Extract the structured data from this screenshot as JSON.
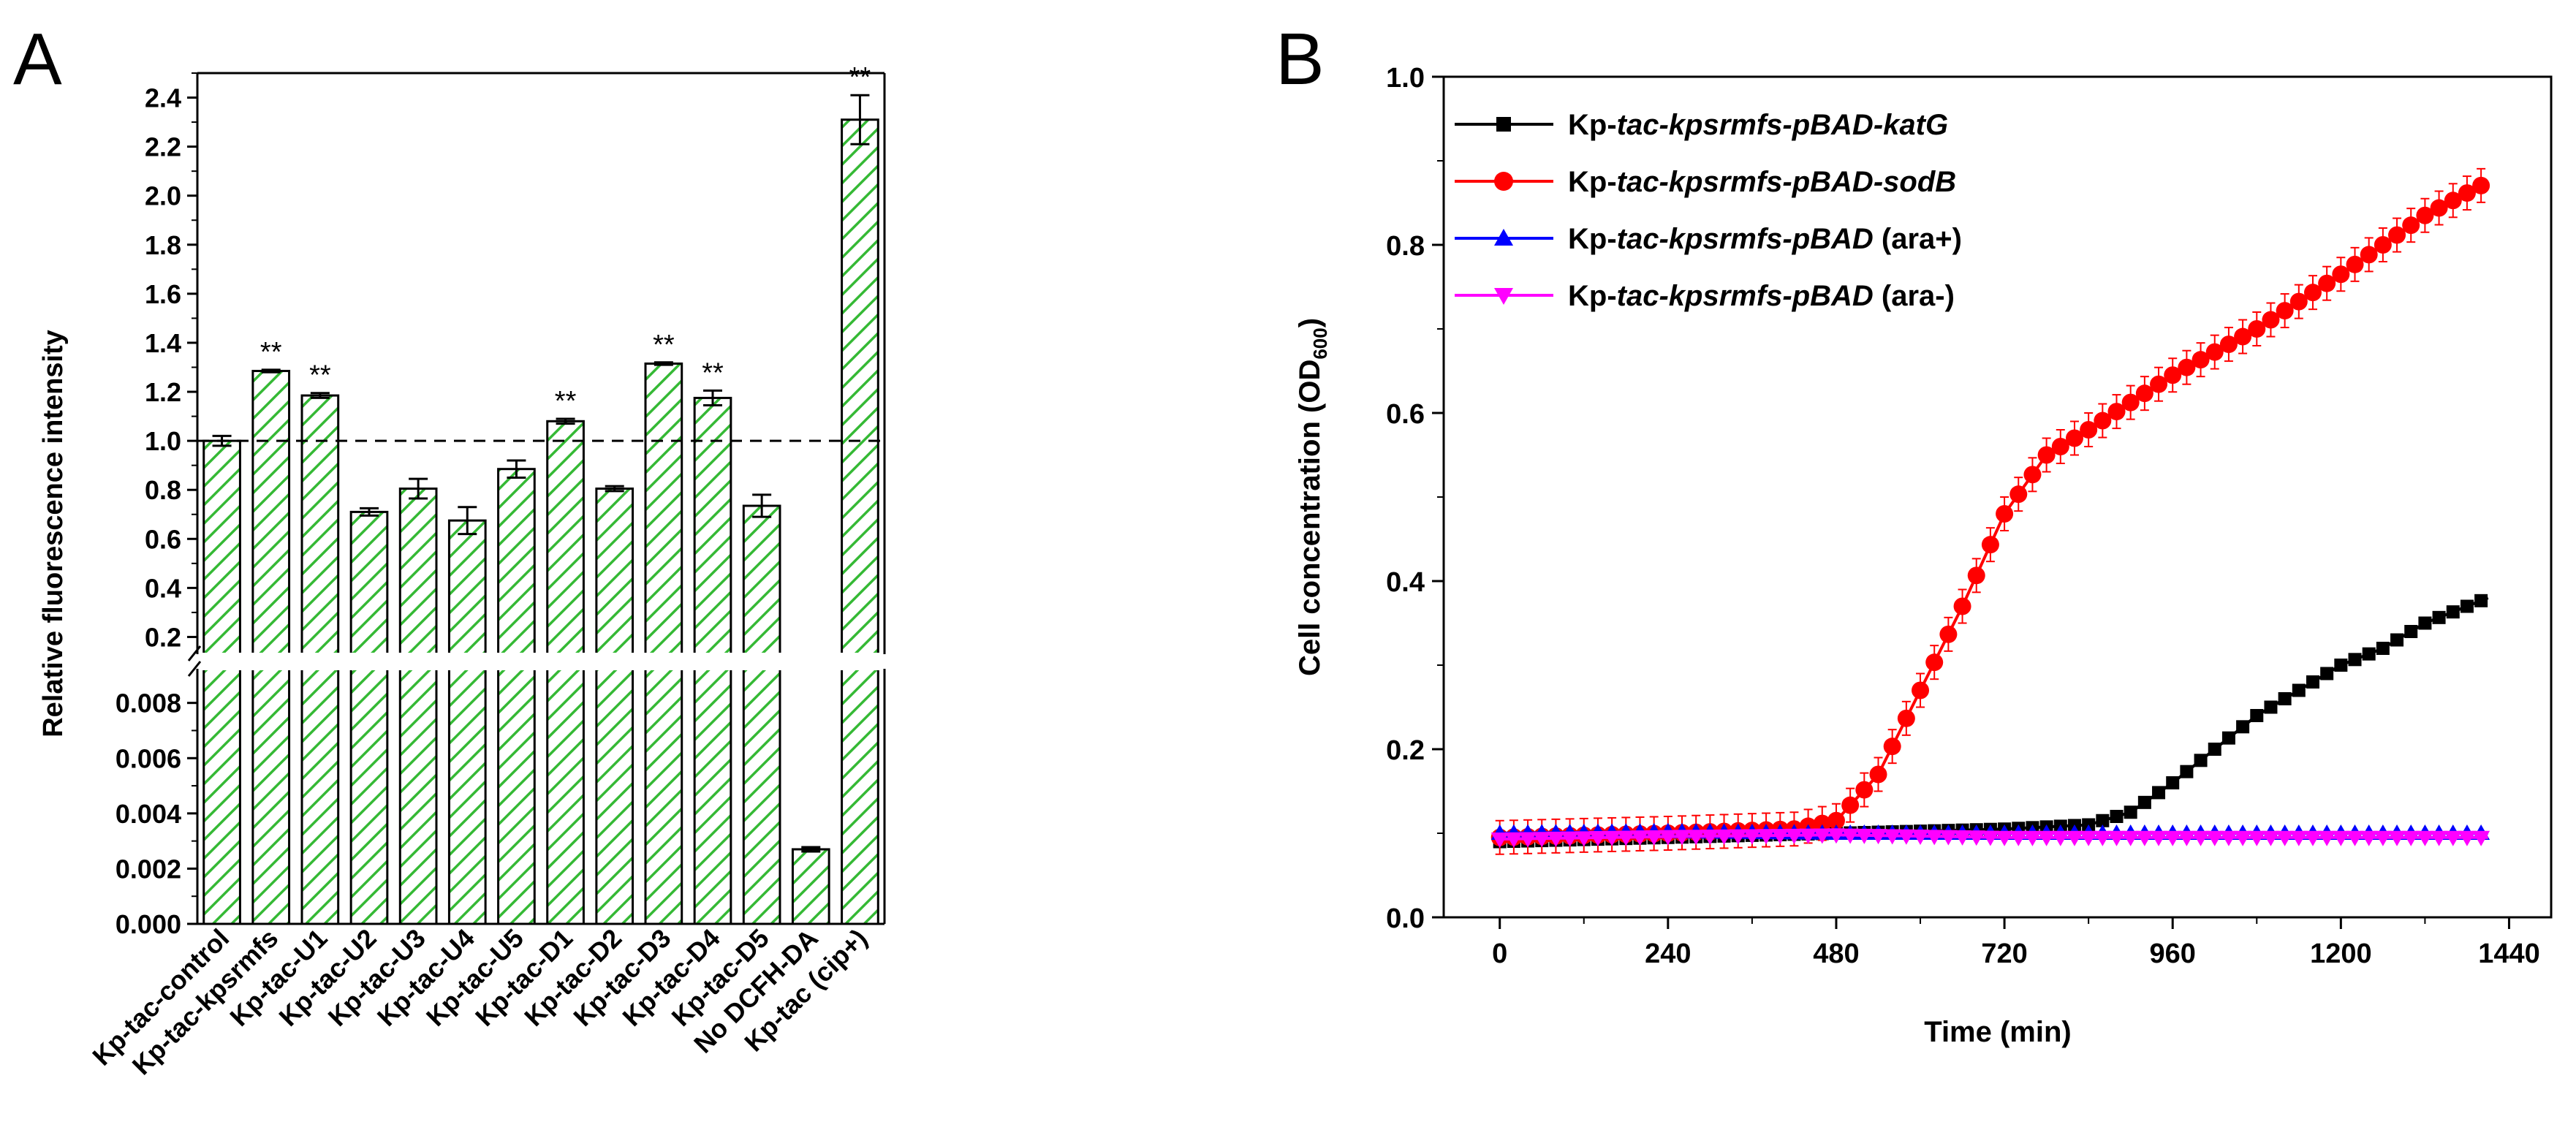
{
  "chart_data": [
    {
      "panel": "A",
      "type": "bar",
      "ylabel": "Relative fluorescence intensity",
      "baseline": 1.0,
      "categories": [
        "Kp-tac-control",
        "Kp-tac-kpsrmfs",
        "Kp-tac-U1",
        "Kp-tac-U2",
        "Kp-tac-U3",
        "Kp-tac-U4",
        "Kp-tac-U5",
        "Kp-tac-D1",
        "Kp-tac-D2",
        "Kp-tac-D3",
        "Kp-tac-D4",
        "Kp-tac-D5",
        "No DCFH-DA",
        "Kp-tac (cip+)"
      ],
      "values": [
        1.0,
        1.285,
        1.185,
        0.71,
        0.805,
        0.675,
        0.885,
        1.08,
        0.805,
        1.315,
        1.175,
        0.735,
        0.0027,
        2.31
      ],
      "errors": [
        0.02,
        0.005,
        0.01,
        0.015,
        0.04,
        0.055,
        0.035,
        0.01,
        0.01,
        0.005,
        0.03,
        0.045,
        8e-05,
        0.1
      ],
      "significance": [
        "",
        "**",
        "**",
        "",
        "",
        "",
        "",
        "**",
        "",
        "**",
        "**",
        "",
        "",
        "**"
      ],
      "upper_axis": {
        "ylim": [
          0.1,
          2.5
        ],
        "ticks": [
          "0.2",
          "0.4",
          "0.6",
          "0.8",
          "1.0",
          "1.2",
          "1.4",
          "1.6",
          "1.8",
          "2.0",
          "2.2",
          "2.4"
        ]
      },
      "lower_axis": {
        "ylim": [
          0,
          0.0095
        ],
        "ticks": [
          "0.000",
          "0.002",
          "0.004",
          "0.006",
          "0.008"
        ]
      },
      "color": "#2fb82f"
    },
    {
      "panel": "B",
      "type": "line",
      "xlabel": "Time (min)",
      "ylabel_main": "Cell concentration (OD",
      "ylabel_sub": "600",
      "ylabel_end": ")",
      "xlim": [
        -80,
        1500
      ],
      "ylim": [
        0,
        1.0
      ],
      "xticks": [
        "0",
        "240",
        "480",
        "720",
        "960",
        "1200",
        "1440"
      ],
      "yticks": [
        "0.0",
        "0.2",
        "0.4",
        "0.6",
        "0.8",
        "1.0"
      ],
      "series": [
        {
          "name": "katG",
          "legend_prefix": "Kp-",
          "legend_italic": "tac-kpsrmfs-pBAD-katG",
          "legend_suffix": "",
          "color": "#000000",
          "marker": "square",
          "points": [
            [
              0,
              0.09
            ],
            [
              240,
              0.095
            ],
            [
              480,
              0.1
            ],
            [
              720,
              0.105
            ],
            [
              840,
              0.11
            ],
            [
              900,
              0.125
            ],
            [
              960,
              0.16
            ],
            [
              1020,
              0.2
            ],
            [
              1080,
              0.24
            ],
            [
              1140,
              0.27
            ],
            [
              1200,
              0.3
            ],
            [
              1260,
              0.32
            ],
            [
              1320,
              0.35
            ],
            [
              1380,
              0.37
            ],
            [
              1410,
              0.38
            ]
          ]
        },
        {
          "name": "sodB",
          "legend_prefix": "Kp-",
          "legend_italic": "tac-kpsrmfs-pBAD-sodB",
          "legend_suffix": "",
          "color": "#ff0000",
          "marker": "circle",
          "points": [
            [
              0,
              0.095
            ],
            [
              240,
              0.1
            ],
            [
              420,
              0.105
            ],
            [
              480,
              0.115
            ],
            [
              540,
              0.17
            ],
            [
              600,
              0.27
            ],
            [
              660,
              0.37
            ],
            [
              720,
              0.48
            ],
            [
              780,
              0.55
            ],
            [
              840,
              0.58
            ],
            [
              960,
              0.645
            ],
            [
              1080,
              0.7
            ],
            [
              1200,
              0.765
            ],
            [
              1320,
              0.835
            ],
            [
              1410,
              0.875
            ]
          ],
          "errors": 0.02
        },
        {
          "name": "ara+",
          "legend_prefix": "Kp-",
          "legend_italic": "tac-kpsrmfs-pBAD",
          "legend_suffix": " (ara+)",
          "color": "#0000ff",
          "marker": "triangle-up",
          "points": [
            [
              0,
              0.1
            ],
            [
              240,
              0.102
            ],
            [
              480,
              0.1
            ],
            [
              720,
              0.1
            ],
            [
              960,
              0.1
            ],
            [
              1200,
              0.1
            ],
            [
              1410,
              0.1
            ]
          ]
        },
        {
          "name": "ara-",
          "legend_prefix": "Kp-",
          "legend_italic": "tac-kpsrmfs-pBAD",
          "legend_suffix": " (ara-)",
          "color": "#ff00ff",
          "marker": "triangle-down",
          "points": [
            [
              0,
              0.093
            ],
            [
              240,
              0.096
            ],
            [
              480,
              0.098
            ],
            [
              720,
              0.095
            ],
            [
              960,
              0.095
            ],
            [
              1200,
              0.095
            ],
            [
              1410,
              0.095
            ]
          ]
        }
      ]
    }
  ]
}
